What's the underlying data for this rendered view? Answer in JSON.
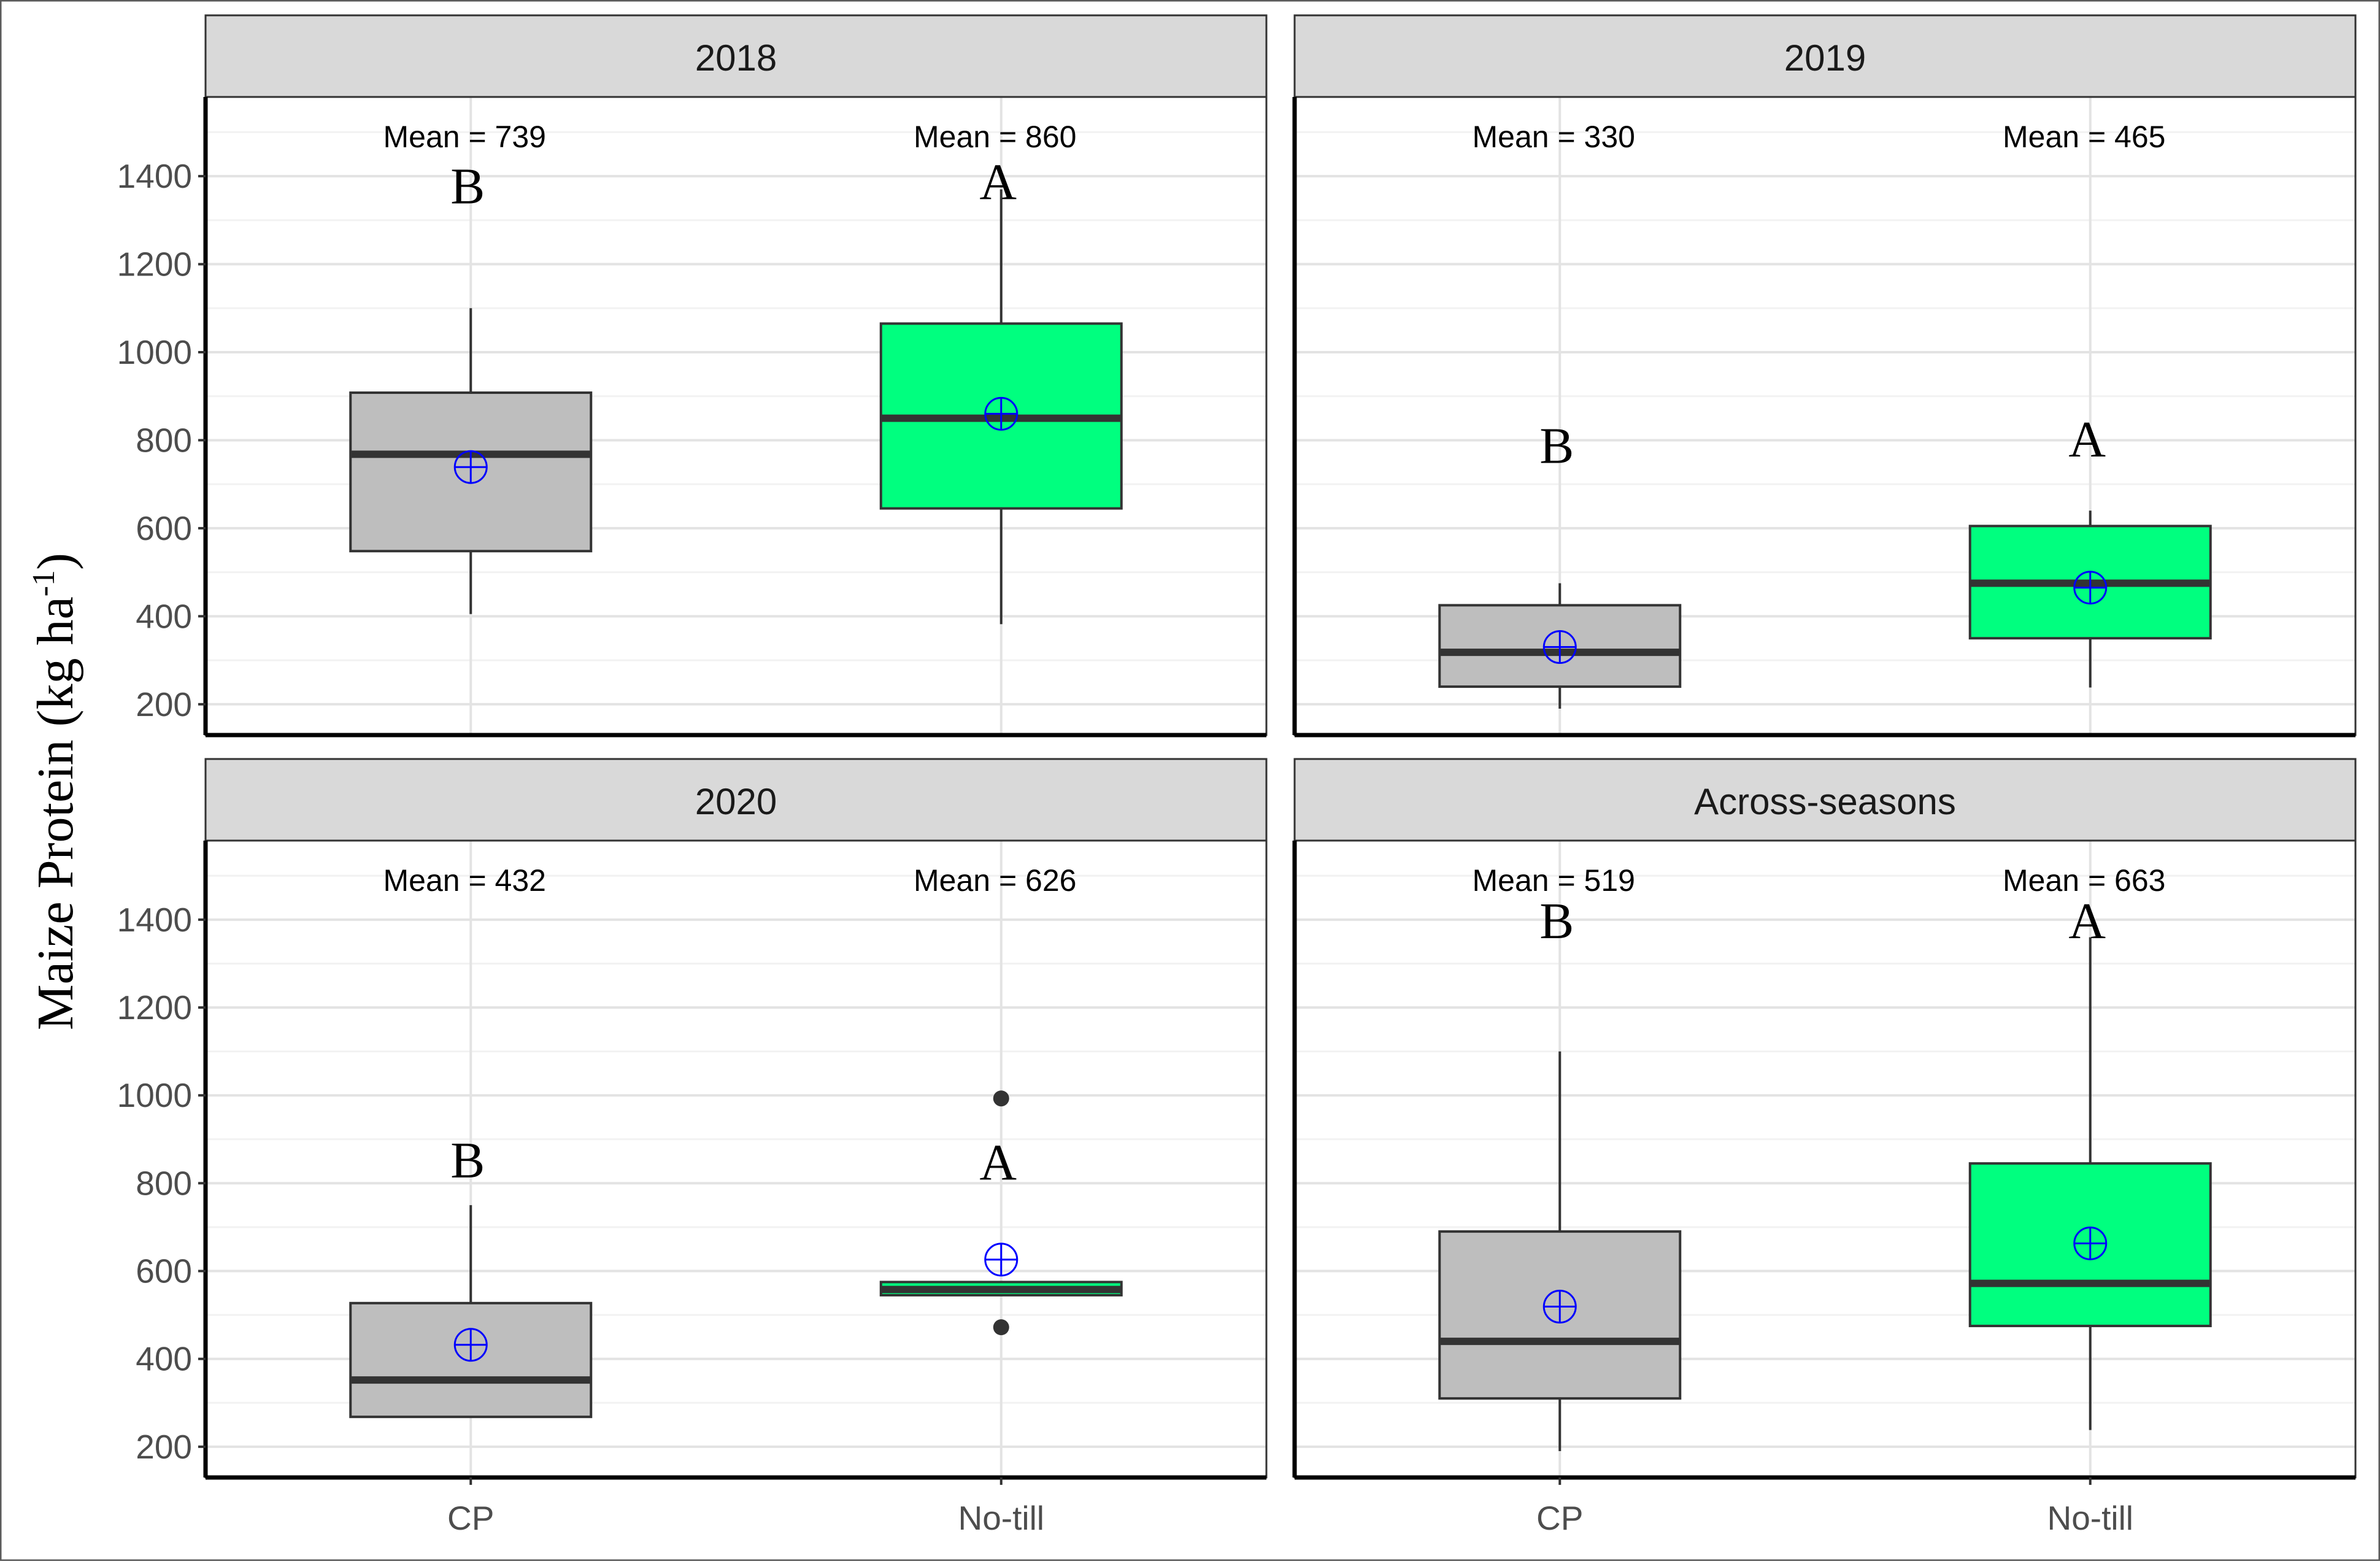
{
  "chart_data": {
    "type": "box",
    "ylabel": "Maize Protein (kg ha",
    "ylabel_superscript": "-1",
    "ylabel_close": ")",
    "categories": [
      "CP",
      "No-till"
    ],
    "yticks": [
      200,
      400,
      600,
      800,
      1000,
      1200,
      1400
    ],
    "ylim": [
      130,
      1580
    ],
    "grid": true,
    "colors": {
      "CP": "#bebebe",
      "No-till": "#00ff7f",
      "mean_marker": "#0000ff"
    },
    "panels": [
      {
        "title": "2018",
        "boxes": [
          {
            "group": "CP",
            "whisker_low": 405,
            "q1": 548,
            "median": 768,
            "q3": 908,
            "whisker_high": 1100,
            "mean": 739,
            "mean_label": "Mean = 739",
            "letter": "B",
            "letter_y": 1380,
            "outliers": []
          },
          {
            "group": "No-till",
            "whisker_low": 382,
            "q1": 645,
            "median": 850,
            "q3": 1065,
            "whisker_high": 1370,
            "mean": 860,
            "mean_label": "Mean = 860",
            "letter": "A",
            "letter_y": 1390,
            "outliers": []
          }
        ]
      },
      {
        "title": "2019",
        "boxes": [
          {
            "group": "CP",
            "whisker_low": 190,
            "q1": 240,
            "median": 318,
            "q3": 425,
            "whisker_high": 475,
            "mean": 330,
            "mean_label": "Mean = 330",
            "letter": "B",
            "letter_y": 790,
            "outliers": []
          },
          {
            "group": "No-till",
            "whisker_low": 238,
            "q1": 350,
            "median": 475,
            "q3": 605,
            "whisker_high": 640,
            "mean": 465,
            "mean_label": "Mean = 465",
            "letter": "A",
            "letter_y": 805,
            "outliers": []
          }
        ]
      },
      {
        "title": "2020",
        "boxes": [
          {
            "group": "CP",
            "whisker_low": 268,
            "q1": 268,
            "median": 352,
            "q3": 527,
            "whisker_high": 750,
            "mean": 432,
            "mean_label": "Mean = 432",
            "letter": "B",
            "letter_y": 855,
            "outliers": []
          },
          {
            "group": "No-till",
            "whisker_low": 545,
            "q1": 545,
            "median": 558,
            "q3": 575,
            "whisker_high": 575,
            "mean": 626,
            "mean_label": "Mean = 626",
            "letter": "A",
            "letter_y": 850,
            "outliers": [
              993,
              472
            ]
          }
        ]
      },
      {
        "title": "Across-seasons",
        "boxes": [
          {
            "group": "CP",
            "whisker_low": 190,
            "q1": 310,
            "median": 440,
            "q3": 690,
            "whisker_high": 1100,
            "mean": 519,
            "mean_label": "Mean = 519",
            "letter": "B",
            "letter_y": 1400,
            "outliers": []
          },
          {
            "group": "No-till",
            "whisker_low": 238,
            "q1": 475,
            "median": 572,
            "q3": 845,
            "whisker_high": 1360,
            "mean": 663,
            "mean_label": "Mean = 663",
            "letter": "A",
            "letter_y": 1400,
            "outliers": []
          }
        ]
      }
    ]
  }
}
